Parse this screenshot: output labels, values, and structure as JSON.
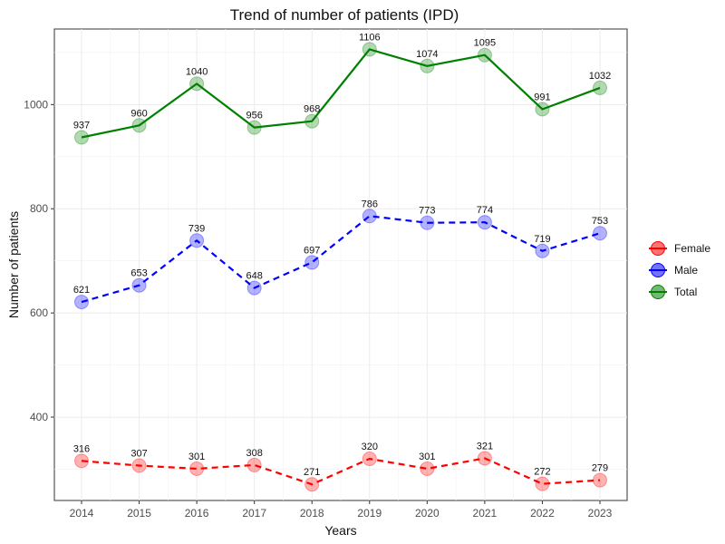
{
  "chart_data": {
    "type": "line",
    "title": "Trend of number of patients (IPD)",
    "xlabel": "Years",
    "ylabel": "Number of patients",
    "categories": [
      "2014",
      "2015",
      "2016",
      "2017",
      "2018",
      "2019",
      "2020",
      "2021",
      "2022",
      "2023"
    ],
    "y_ticks": [
      400,
      600,
      800,
      1000
    ],
    "ylim": [
      240,
      1145
    ],
    "grid": true,
    "legend_position": "right",
    "series": [
      {
        "name": "Female",
        "color": "#ff0000",
        "line_style": "dashed",
        "values": [
          316,
          307,
          301,
          308,
          271,
          320,
          301,
          321,
          272,
          279
        ],
        "labels": [
          "316",
          "307",
          "301",
          "308",
          "271",
          "320",
          "301",
          "321",
          "272",
          "279"
        ]
      },
      {
        "name": "Male",
        "color": "#0000ff",
        "line_style": "dashed",
        "values": [
          621,
          653,
          739,
          648,
          697,
          786,
          773,
          774,
          719,
          753
        ],
        "labels": [
          "621",
          "653",
          "739",
          "648",
          "697",
          "786",
          "773",
          "774",
          "719",
          "753"
        ]
      },
      {
        "name": "Total",
        "color": "#008000",
        "line_style": "solid",
        "values": [
          937,
          960,
          1040,
          956,
          968,
          1106,
          1074,
          1095,
          991,
          1032
        ],
        "labels": [
          "937",
          "960",
          "1040",
          "956",
          "968",
          "1106",
          "1074",
          "1095",
          "991",
          "1032"
        ]
      }
    ]
  }
}
